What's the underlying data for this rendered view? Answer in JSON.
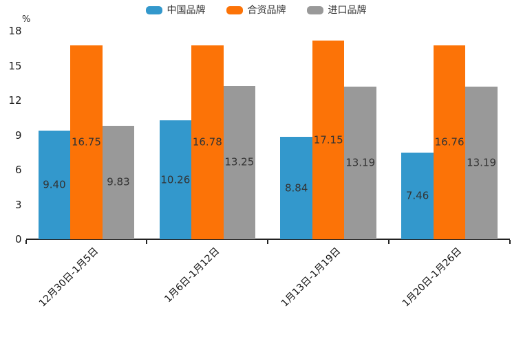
{
  "chart_data": {
    "type": "bar",
    "title": "",
    "unit_label": "%",
    "categories": [
      "12月30日-1月5日",
      "1月6日-1月12日",
      "1月13日-1月19日",
      "1月20日-1月26日"
    ],
    "series": [
      {
        "name": "中国品牌",
        "color": "#3398CC",
        "values": [
          9.4,
          10.26,
          8.84,
          7.46
        ]
      },
      {
        "name": "合资品牌",
        "color": "#FC7307",
        "values": [
          16.75,
          16.78,
          17.15,
          16.76
        ]
      },
      {
        "name": "进口品牌",
        "color": "#999999",
        "values": [
          9.83,
          13.25,
          13.19,
          13.19
        ]
      }
    ],
    "value_label_decimals": 2,
    "y_ticks": [
      0,
      3,
      6,
      9,
      12,
      15,
      18
    ],
    "ylim": [
      0,
      18
    ],
    "grid": false,
    "legend_position": "top",
    "xlabel": "",
    "ylabel": ""
  }
}
